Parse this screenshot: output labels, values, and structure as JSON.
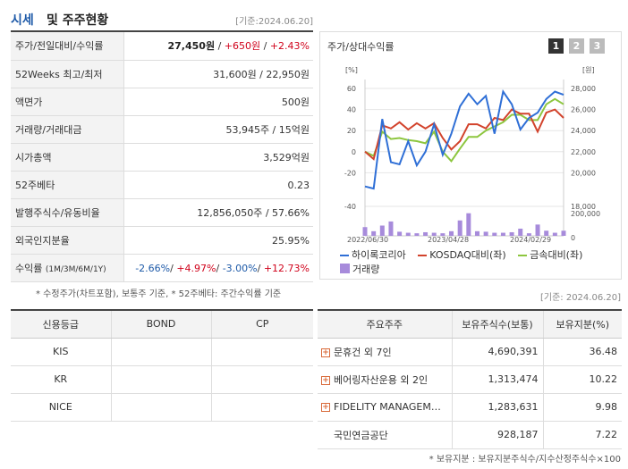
{
  "header": {
    "title_a": "시세",
    "title_b": "및 주주현황",
    "date": "[기준:2024.06.20]"
  },
  "info": [
    {
      "label": "주가/전일대비/수익률"
    },
    {
      "label": "52Weeks 최고/최저",
      "value": "31,600원 / 22,950원"
    },
    {
      "label": "액면가",
      "value": "500원"
    },
    {
      "label": "거래량/거래대금",
      "value": "53,945주 / 15억원"
    },
    {
      "label": "시가총액",
      "value": "3,529억원"
    },
    {
      "label": "52주베타",
      "value": "0.23"
    },
    {
      "label": "발행주식수/유동비율",
      "value": "12,856,050주 / 57.66%"
    },
    {
      "label": "외국인지분율",
      "value": "25.95%"
    },
    {
      "label": "수익률",
      "label_sub": "(1M/3M/6M/1Y)"
    }
  ],
  "price": {
    "price": "27,450원",
    "sep1": " / ",
    "change": "+650원",
    "sep2": " / ",
    "rate": "+2.43%"
  },
  "returns": {
    "m1": "-2.66%",
    "m3": "+4.97%",
    "m6": "-3.00%",
    "y1": "+12.73%",
    "sep": "/ "
  },
  "note1": "* 수정주가(차트포함), 보통주 기준, * 52주베타: 주간수익률 기준",
  "chart": {
    "title": "주가/상대수익률",
    "pages": [
      "1",
      "2",
      "3"
    ],
    "left_unit": "[%]",
    "right_unit": "[원]",
    "left_ticks": [
      "60",
      "40",
      "20",
      "0",
      "-20",
      "-40"
    ],
    "right_ticks": [
      "28,000",
      "26,000",
      "24,000",
      "22,000",
      "20,000",
      "18,000"
    ],
    "vol_tick_top": "200,000",
    "vol_tick_bottom": "0",
    "x_labels": [
      "2022/06/30",
      "2023/04/28",
      "2024/02/29"
    ],
    "legend": {
      "a": "하이록코리아",
      "b": "KOSDAQ대비(좌)",
      "c": "금속대비(좌)",
      "d": "거래량"
    },
    "colors": {
      "a": "#2f6fd6",
      "b": "#d2432c",
      "c": "#8dc63f",
      "d": "#a78bdb"
    }
  },
  "chart_data": {
    "type": "line",
    "ylabel": "[%]",
    "ylim": [
      -40,
      60
    ],
    "series": [
      {
        "name": "하이록코리아",
        "values": [
          -33,
          -35,
          31,
          -10,
          -12,
          10,
          -13,
          0,
          26,
          -3,
          17,
          43,
          55,
          45,
          53,
          17,
          57,
          45,
          21,
          32,
          37,
          50,
          57,
          54
        ]
      },
      {
        "name": "KOSDAQ대비(좌)",
        "values": [
          0,
          -7,
          25,
          22,
          28,
          21,
          27,
          22,
          27,
          13,
          2,
          10,
          26,
          26,
          22,
          32,
          30,
          40,
          36,
          36,
          19,
          37,
          40,
          32
        ]
      },
      {
        "name": "금속대비(좌)",
        "values": [
          0,
          -4,
          19,
          12,
          13,
          11,
          10,
          8,
          19,
          0,
          -9,
          3,
          14,
          14,
          20,
          24,
          28,
          35,
          35,
          30,
          30,
          45,
          50,
          45
        ]
      }
    ],
    "volume": [
      85000,
      45000,
      100000,
      140000,
      40000,
      30000,
      25000,
      35000,
      30000,
      25000,
      45000,
      150000,
      220000,
      45000,
      40000,
      30000,
      30000,
      35000,
      70000,
      25000,
      110000,
      50000,
      30000,
      50000
    ],
    "volume_ylim": [
      0,
      200000
    ]
  },
  "credit": {
    "headers": [
      "신용등급",
      "BOND",
      "CP"
    ],
    "rows": [
      [
        "KIS",
        "",
        ""
      ],
      [
        "KR",
        "",
        ""
      ],
      [
        "NICE",
        "",
        ""
      ]
    ]
  },
  "holders": {
    "date": "[기준: 2024.06.20]",
    "headers": [
      "주요주주",
      "보유주식수(보통)",
      "보유지분(%)"
    ],
    "rows": [
      {
        "name": "문휴건 외 7인",
        "shares": "4,690,391",
        "pct": "36.48",
        "expand": true
      },
      {
        "name": "베어링자산운용 외 2인",
        "shares": "1,313,474",
        "pct": "10.22",
        "expand": true
      },
      {
        "name": "FIDELITY MANAGEM…",
        "shares": "1,283,631",
        "pct": "9.98",
        "expand": true
      },
      {
        "name": "국민연금공단",
        "shares": "928,187",
        "pct": "7.22",
        "expand": false
      }
    ],
    "note": "* 보유지분 : 보유지분주식수/지수산정주식수×100"
  }
}
